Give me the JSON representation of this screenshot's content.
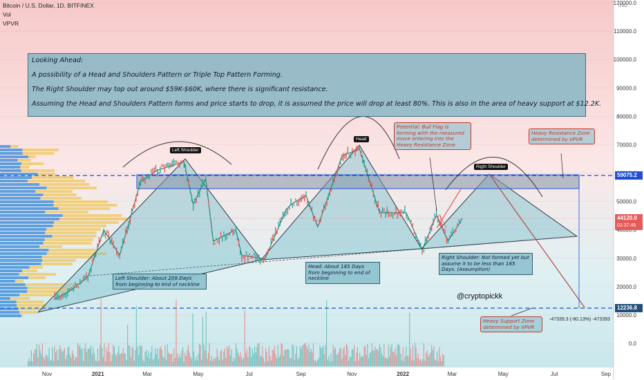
{
  "header": {
    "symbol": "Bitcoin / U.S. Dollar, 1D, BITFINEX",
    "vol": "Vol",
    "vpvr": "VPVR"
  },
  "currency": "USD",
  "note": {
    "line1": "Looking Ahead:",
    "line2": "A possibility of a Head and Shoulders Pattern or Triple Top Pattern Forming.",
    "line3": "The Right Shoulder may top out around $59K-$60K, where there is significant resistance.",
    "line4": "Assuming the Head and Shoulders Pattern forms and price starts to drop, it is assumed the price will drop at least 80%. This is also in the area of heavy support at $12.2K."
  },
  "tags": {
    "left_shoulder": "Left Shoulder",
    "head": "Head",
    "right_shoulder": "Right Shoulder"
  },
  "callouts": {
    "left": "Left Shoulder: About 209 Days from beginning to end of neckline",
    "head": "Head: About 185 Days from beginning to end of neckline",
    "right": "Right Shoulder: Not formed yet but assume it to be less than 185 Days. (Assumption)",
    "bull_flag": "Potential: Bull Flag is forming with the measured move entering into the Heavy Resistance Zone.",
    "resistance": "Heavy Resistance Zone determined by VPVR",
    "support": "Heavy Support Zone determined by VPVR"
  },
  "watermark": "@cryptopickk",
  "measure": "-47339.3 (-80.13%) -473393",
  "price_labels": {
    "resistance": "59075.2",
    "current": "44120.0",
    "countdown": "02:37:45",
    "support": "12236.8"
  },
  "chart_data": {
    "type": "line",
    "title": "Bitcoin / U.S. Dollar, 1D, BITFINEX",
    "y_axis_ticks": [
      "120000.0",
      "110000.0",
      "100000.0",
      "90000.0",
      "80000.0",
      "70000.0",
      "60000.0",
      "50000.0",
      "40000.0",
      "30000.0",
      "20000.0",
      "10000.0",
      "0.0"
    ],
    "x_axis_ticks": [
      "Nov",
      "2021",
      "Mar",
      "May",
      "Jul",
      "Sep",
      "Nov",
      "2022",
      "Mar",
      "May",
      "Jul",
      "Sep"
    ],
    "price_path": [
      [
        "2020-11-10",
        15500
      ],
      [
        "2020-12-01",
        19000
      ],
      [
        "2020-12-20",
        23500
      ],
      [
        "2021-01-08",
        40000
      ],
      [
        "2021-01-27",
        31000
      ],
      [
        "2021-02-21",
        57000
      ],
      [
        "2021-03-13",
        61000
      ],
      [
        "2021-04-14",
        64000
      ],
      [
        "2021-04-25",
        49000
      ],
      [
        "2021-05-10",
        58000
      ],
      [
        "2021-05-19",
        36000
      ],
      [
        "2021-06-15",
        40000
      ],
      [
        "2021-06-22",
        31000
      ],
      [
        "2021-07-20",
        29800
      ],
      [
        "2021-08-14",
        47000
      ],
      [
        "2021-08-20",
        49000
      ],
      [
        "2021-09-07",
        52000
      ],
      [
        "2021-09-21",
        41000
      ],
      [
        "2021-10-20",
        66000
      ],
      [
        "2021-11-10",
        68500
      ],
      [
        "2021-12-04",
        46000
      ],
      [
        "2022-01-05",
        46000
      ],
      [
        "2022-01-24",
        33000
      ],
      [
        "2022-02-10",
        45000
      ],
      [
        "2022-02-24",
        36000
      ],
      [
        "2022-03-09",
        42000
      ],
      [
        "2022-03-13",
        44120
      ]
    ],
    "resistance_level": 59075.2,
    "support_level": 12236.8,
    "current_price": 44120.0,
    "annotations": [
      "Left Shoulder",
      "Head",
      "Right Shoulder"
    ],
    "projected_drop_pct": -80.13
  },
  "colors": {
    "resistance_line": "#1d4fd6",
    "support_label": "#1f4f7a",
    "current_price": "#e65a5a",
    "pattern_fill": "#8ec6d2",
    "volume_up": "#26a69a",
    "volume_down": "#ef5350"
  }
}
